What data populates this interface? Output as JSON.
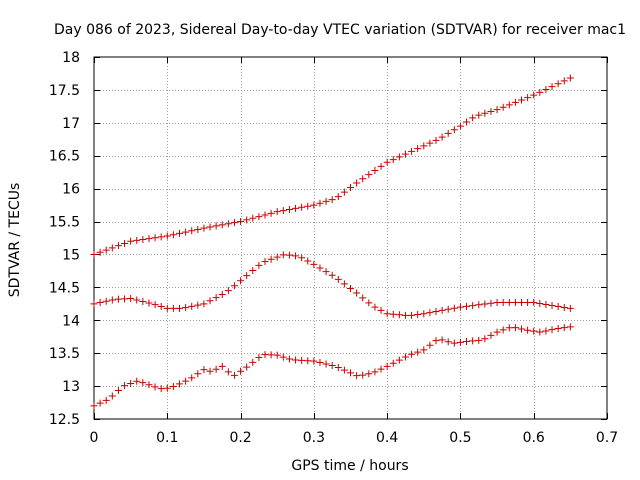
{
  "chart_data": {
    "type": "scatter",
    "title": "Day 086 of 2023, Sidereal Day-to-day VTEC variation (SDTVAR) for receiver mac1",
    "xlabel": "GPS time / hours",
    "ylabel": "SDTVAR / TECUs",
    "xlim": [
      0,
      0.7
    ],
    "ylim": [
      12.5,
      18
    ],
    "xticks": [
      0,
      0.1,
      0.2,
      0.3,
      0.4,
      0.5,
      0.6,
      0.7
    ],
    "xtick_labels": [
      "0",
      "0.1",
      "0.2",
      "0.3",
      "0.4",
      "0.5",
      "0.6",
      "0.7"
    ],
    "yticks": [
      12.5,
      13,
      13.5,
      14,
      14.5,
      15,
      15.5,
      16,
      16.5,
      17,
      17.5,
      18
    ],
    "ytick_labels": [
      "12.5",
      "13",
      "13.5",
      "14",
      "14.5",
      "15",
      "15.5",
      "16",
      "16.5",
      "17",
      "17.5",
      "18"
    ],
    "grid": true,
    "marker": "+",
    "marker_color": "#cc0000",
    "x_points": {
      "start": 0,
      "end": 0.65,
      "count": 79
    },
    "series": [
      {
        "name": "upper",
        "anchors": [
          [
            0,
            15.0
          ],
          [
            0.05,
            15.2
          ],
          [
            0.1,
            15.28
          ],
          [
            0.15,
            15.4
          ],
          [
            0.2,
            15.5
          ],
          [
            0.25,
            15.65
          ],
          [
            0.3,
            15.75
          ],
          [
            0.33,
            15.85
          ],
          [
            0.36,
            16.1
          ],
          [
            0.4,
            16.4
          ],
          [
            0.45,
            16.65
          ],
          [
            0.47,
            16.75
          ],
          [
            0.5,
            16.95
          ],
          [
            0.52,
            17.1
          ],
          [
            0.55,
            17.2
          ],
          [
            0.6,
            17.42
          ],
          [
            0.65,
            17.68
          ]
        ]
      },
      {
        "name": "middle",
        "anchors": [
          [
            0,
            14.25
          ],
          [
            0.03,
            14.32
          ],
          [
            0.05,
            14.33
          ],
          [
            0.08,
            14.25
          ],
          [
            0.1,
            14.18
          ],
          [
            0.12,
            14.18
          ],
          [
            0.15,
            14.25
          ],
          [
            0.18,
            14.42
          ],
          [
            0.2,
            14.6
          ],
          [
            0.23,
            14.88
          ],
          [
            0.26,
            15.0
          ],
          [
            0.28,
            14.97
          ],
          [
            0.3,
            14.85
          ],
          [
            0.33,
            14.65
          ],
          [
            0.36,
            14.4
          ],
          [
            0.38,
            14.22
          ],
          [
            0.4,
            14.1
          ],
          [
            0.43,
            14.07
          ],
          [
            0.45,
            14.1
          ],
          [
            0.5,
            14.2
          ],
          [
            0.55,
            14.27
          ],
          [
            0.6,
            14.27
          ],
          [
            0.65,
            14.18
          ]
        ]
      },
      {
        "name": "lower",
        "anchors": [
          [
            0,
            12.7
          ],
          [
            0.02,
            12.8
          ],
          [
            0.04,
            13.0
          ],
          [
            0.06,
            13.08
          ],
          [
            0.08,
            13.0
          ],
          [
            0.095,
            12.95
          ],
          [
            0.11,
            13.0
          ],
          [
            0.13,
            13.1
          ],
          [
            0.15,
            13.25
          ],
          [
            0.16,
            13.22
          ],
          [
            0.175,
            13.3
          ],
          [
            0.19,
            13.15
          ],
          [
            0.21,
            13.3
          ],
          [
            0.23,
            13.48
          ],
          [
            0.25,
            13.47
          ],
          [
            0.27,
            13.4
          ],
          [
            0.3,
            13.38
          ],
          [
            0.33,
            13.3
          ],
          [
            0.36,
            13.15
          ],
          [
            0.38,
            13.2
          ],
          [
            0.4,
            13.3
          ],
          [
            0.43,
            13.47
          ],
          [
            0.45,
            13.55
          ],
          [
            0.47,
            13.72
          ],
          [
            0.49,
            13.65
          ],
          [
            0.51,
            13.68
          ],
          [
            0.53,
            13.7
          ],
          [
            0.55,
            13.82
          ],
          [
            0.57,
            13.9
          ],
          [
            0.59,
            13.85
          ],
          [
            0.61,
            13.82
          ],
          [
            0.63,
            13.87
          ],
          [
            0.65,
            13.9
          ]
        ]
      }
    ]
  }
}
